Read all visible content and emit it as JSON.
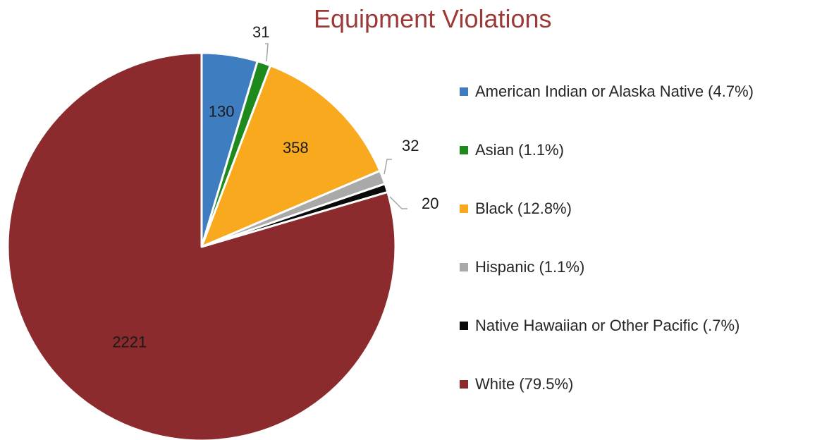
{
  "chart_data": {
    "type": "pie",
    "title": "Equipment Violations",
    "categories": [
      "American Indian or Alaska Native",
      "Asian",
      "Black",
      "Hispanic",
      "Native Hawaiian or Other Pacific",
      "White"
    ],
    "values": [
      130,
      31,
      358,
      32,
      20,
      2221
    ],
    "value_labels": [
      "130",
      "31",
      "358",
      "32",
      "20",
      "2221"
    ],
    "legend_labels": [
      "American Indian or Alaska Native (4.7%)",
      "Asian (1.1%)",
      "Black (12.8%)",
      "Hispanic (1.1%)",
      "Native Hawaiian or Other Pacific (.7%)",
      "White (79.5%)"
    ],
    "colors": [
      "#3f7dc1",
      "#1e8a1e",
      "#f8a91d",
      "#a9a9a9",
      "#0a0a0a",
      "#8c2b2d"
    ],
    "legend_position": "right",
    "start_angle_deg": 0,
    "direction": "clockwise"
  }
}
